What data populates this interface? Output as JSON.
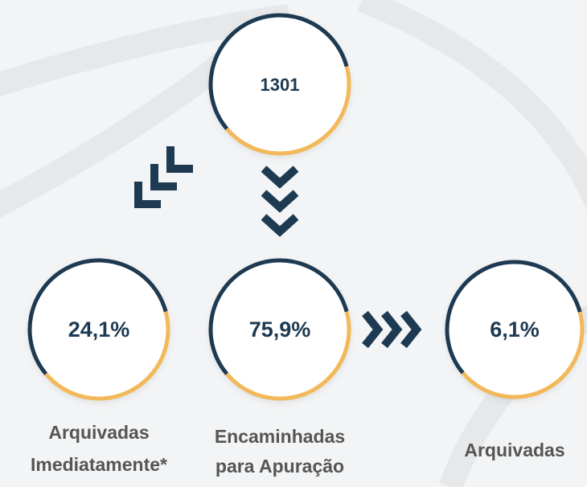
{
  "nodes": [
    {
      "label": "1301"
    },
    {
      "label": "24,1%",
      "caption": [
        "Arquivadas",
        "Imediatamente*"
      ]
    },
    {
      "label": "75,9%",
      "caption": [
        "Encaminhadas",
        "para Apuração"
      ]
    },
    {
      "label": "6,1%",
      "caption": [
        "Arquivadas"
      ]
    }
  ]
}
